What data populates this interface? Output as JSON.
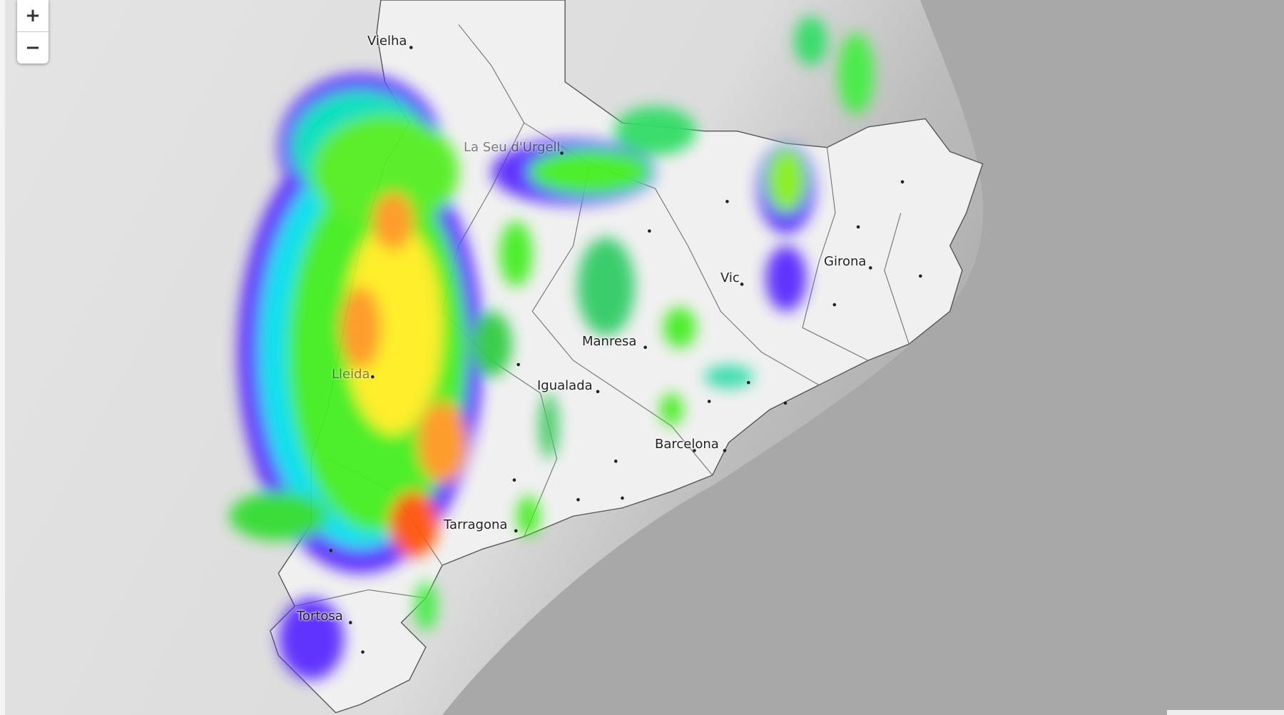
{
  "zoom_controls": {
    "zoom_in": "+",
    "zoom_out": "−"
  },
  "cities": [
    {
      "name": "Vielha"
    },
    {
      "name": "La Seu d'Urgell"
    },
    {
      "name": "Lleida"
    },
    {
      "name": "Vic"
    },
    {
      "name": "Girona"
    },
    {
      "name": "Manresa"
    },
    {
      "name": "Igualada"
    },
    {
      "name": "Barcelona"
    },
    {
      "name": "Tarragona"
    },
    {
      "name": "Tortosa"
    }
  ],
  "colors": {
    "land": "#e6e6e6",
    "sea": "#a0a0a0",
    "region": "#f2f2f2",
    "radar_low": "#5a2cff",
    "radar_mid": "#33ff33",
    "radar_high": "#ff6a00"
  }
}
